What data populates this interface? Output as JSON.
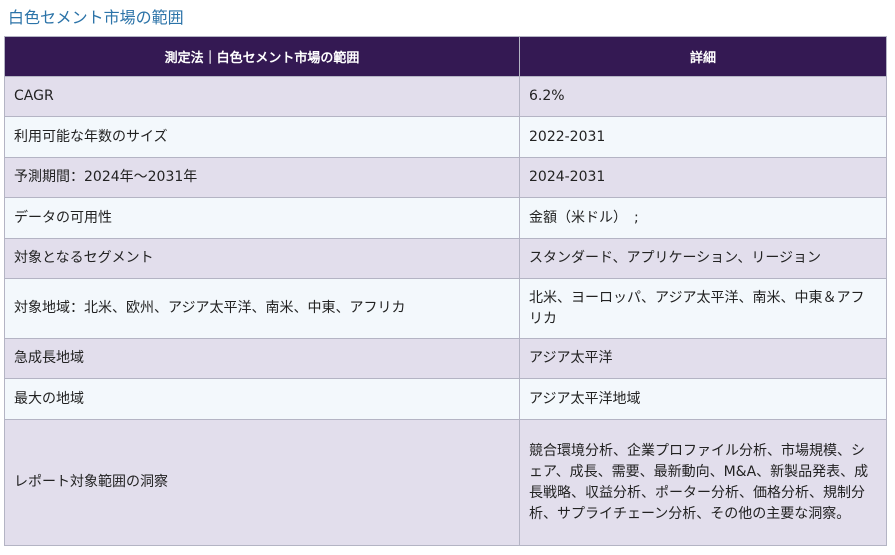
{
  "page_title": "白色セメント市場の範囲",
  "table": {
    "headers": [
      "測定法｜白色セメント市場の範囲",
      "詳細"
    ],
    "rows": [
      {
        "metric": "CAGR",
        "detail": "6.2%"
      },
      {
        "metric": "利用可能な年数のサイズ",
        "detail": "2022-2031"
      },
      {
        "metric": "予測期間：2024年～2031年",
        "detail": "2024-2031"
      },
      {
        "metric": "データの可用性",
        "detail": "金額（米ドル）　;"
      },
      {
        "metric": "対象となるセグメント",
        "detail": "スタンダード、アプリケーション、リージョン"
      },
      {
        "metric": "対象地域：北米、欧州、アジア太平洋、南米、中東、アフリカ",
        "detail": "北米、ヨーロッパ、アジア太平洋、南米、中東＆アフリカ"
      },
      {
        "metric": "急成長地域",
        "detail": "アジア太平洋"
      },
      {
        "metric": "最大の地域",
        "detail": "アジア太平洋地域"
      },
      {
        "metric": "レポート対象範囲の洞察",
        "detail": "競合環境分析、企業プロファイル分析、市場規模、シェア、成長、需要、最新動向、M&A、新製品発表、成長戦略、収益分析、ポーター分析、価格分析、規制分析、サプライチェーン分析、その他の主要な洞察。"
      }
    ]
  }
}
